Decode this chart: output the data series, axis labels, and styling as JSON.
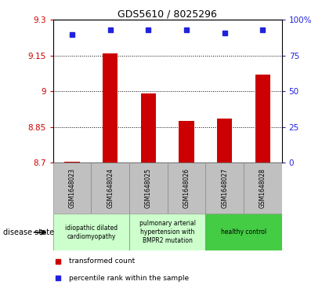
{
  "title": "GDS5610 / 8025296",
  "samples": [
    "GSM1648023",
    "GSM1648024",
    "GSM1648025",
    "GSM1648026",
    "GSM1648027",
    "GSM1648028"
  ],
  "bar_values": [
    8.703,
    9.16,
    8.99,
    8.875,
    8.885,
    9.07
  ],
  "percentile_values": [
    90,
    93,
    93,
    93,
    91,
    93
  ],
  "ylim_left": [
    8.7,
    9.3
  ],
  "ylim_right": [
    0,
    100
  ],
  "yticks_left": [
    8.7,
    8.85,
    9.0,
    9.15,
    9.3
  ],
  "ytick_labels_left": [
    "8.7",
    "8.85",
    "9",
    "9.15",
    "9.3"
  ],
  "yticks_right": [
    0,
    25,
    50,
    75,
    100
  ],
  "ytick_labels_right": [
    "0",
    "25",
    "50",
    "75",
    "100%"
  ],
  "grid_lines": [
    8.85,
    9.0,
    9.15
  ],
  "bar_color": "#cc0000",
  "dot_color": "#2222dd",
  "left_axis_color": "#cc0000",
  "right_axis_color": "#2222dd",
  "disease_groups": [
    {
      "label": "idiopathic dilated\ncardiomyopathy",
      "indices": [
        0,
        1
      ],
      "color": "#ccffcc"
    },
    {
      "label": "pulmonary arterial\nhypertension with\nBMPR2 mutation",
      "indices": [
        2,
        3
      ],
      "color": "#ccffcc"
    },
    {
      "label": "healthy control",
      "indices": [
        4,
        5
      ],
      "color": "#44cc44"
    }
  ],
  "legend_labels": [
    "transformed count",
    "percentile rank within the sample"
  ],
  "disease_state_label": "disease state",
  "background_color": "#ffffff",
  "sample_box_color": "#c0c0c0",
  "bar_width": 0.4
}
